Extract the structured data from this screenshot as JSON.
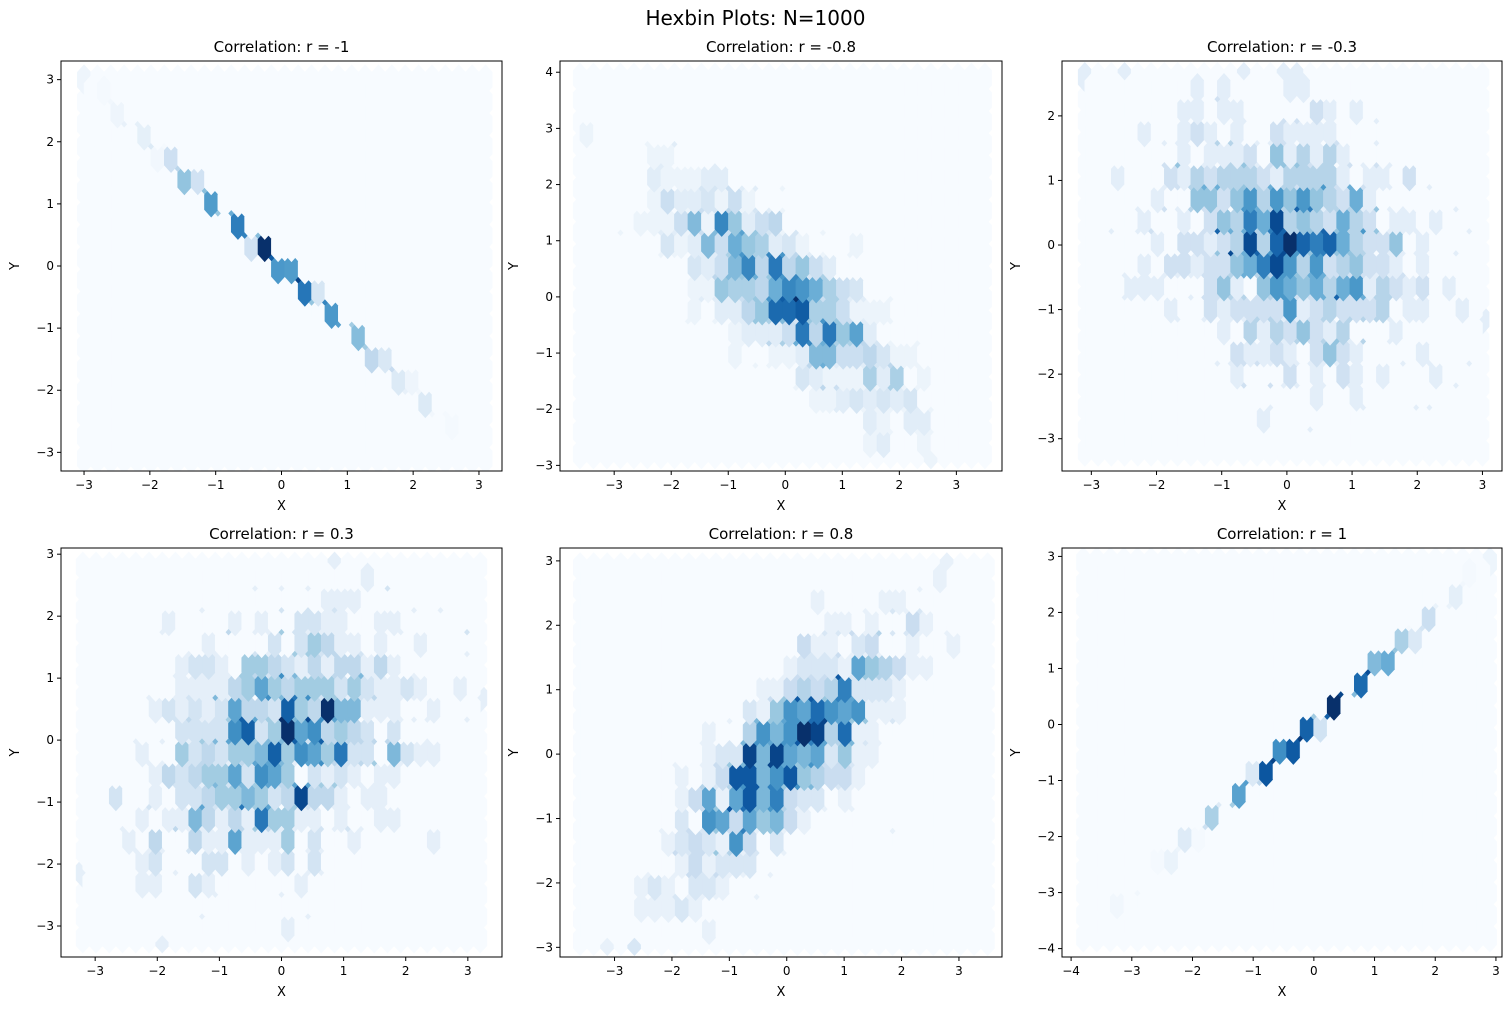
{
  "figure": {
    "title": "Hexbin Plots: N=1000",
    "colormap": [
      "#f7fbff",
      "#deebf7",
      "#c6dbef",
      "#9ecae1",
      "#6baed6",
      "#4292c6",
      "#2171b5",
      "#08519c",
      "#08306b"
    ]
  },
  "chart_data": [
    {
      "type": "hexbin",
      "title": "Correlation: r = -1",
      "xlabel": "X",
      "ylabel": "Y",
      "r": -1,
      "xlim": [
        -3.35,
        3.35
      ],
      "ylim": [
        -3.3,
        3.3
      ],
      "xticks": [
        -3,
        -2,
        -1,
        0,
        1,
        2,
        3
      ],
      "yticks": [
        -3,
        -2,
        -1,
        0,
        1,
        2,
        3
      ],
      "extent": {
        "x": [
          -3.0,
          3.1
        ],
        "y": [
          -3.1,
          3.0
        ]
      },
      "n_points": 1000
    },
    {
      "type": "hexbin",
      "title": "Correlation: r = -0.8",
      "xlabel": "X",
      "ylabel": "Y",
      "r": -0.8,
      "xlim": [
        -3.95,
        3.8
      ],
      "ylim": [
        -3.1,
        4.2
      ],
      "xticks": [
        -3,
        -2,
        -1,
        0,
        1,
        2,
        3
      ],
      "yticks": [
        -3,
        -2,
        -1,
        0,
        1,
        2,
        3,
        4
      ],
      "extent": {
        "x": [
          -3.6,
          3.5
        ],
        "y": [
          -2.8,
          3.9
        ]
      },
      "n_points": 1000
    },
    {
      "type": "hexbin",
      "title": "Correlation: r = -0.3",
      "xlabel": "X",
      "ylabel": "Y",
      "r": -0.3,
      "xlim": [
        -3.45,
        3.3
      ],
      "ylim": [
        -3.5,
        2.85
      ],
      "xticks": [
        -3,
        -2,
        -1,
        0,
        1,
        2,
        3
      ],
      "yticks": [
        -3,
        -2,
        -1,
        0,
        1,
        2
      ],
      "extent": {
        "x": [
          -3.1,
          3.0
        ],
        "y": [
          -3.2,
          2.6
        ]
      },
      "n_points": 1000
    },
    {
      "type": "hexbin",
      "title": "Correlation: r = 0.3",
      "xlabel": "X",
      "ylabel": "Y",
      "r": 0.3,
      "xlim": [
        -3.55,
        3.55
      ],
      "ylim": [
        -3.5,
        3.1
      ],
      "xticks": [
        -3,
        -2,
        -1,
        0,
        1,
        2,
        3
      ],
      "yticks": [
        -3,
        -2,
        -1,
        0,
        1,
        2,
        3
      ],
      "extent": {
        "x": [
          -3.2,
          3.2
        ],
        "y": [
          -3.2,
          2.8
        ]
      },
      "n_points": 1000
    },
    {
      "type": "hexbin",
      "title": "Correlation: r = 0.8",
      "xlabel": "X",
      "ylabel": "Y",
      "r": 0.8,
      "xlim": [
        -3.95,
        3.75
      ],
      "ylim": [
        -3.15,
        3.2
      ],
      "xticks": [
        -3,
        -2,
        -1,
        0,
        1,
        2,
        3
      ],
      "yticks": [
        -3,
        -2,
        -1,
        0,
        1,
        2,
        3
      ],
      "extent": {
        "x": [
          -3.6,
          3.5
        ],
        "y": [
          -2.9,
          2.9
        ]
      },
      "n_points": 1000
    },
    {
      "type": "hexbin",
      "title": "Correlation: r = 1",
      "xlabel": "X",
      "ylabel": "Y",
      "r": 1,
      "xlim": [
        -4.15,
        3.1
      ],
      "ylim": [
        -4.15,
        3.15
      ],
      "xticks": [
        -4,
        -3,
        -2,
        -1,
        0,
        1,
        2,
        3
      ],
      "yticks": [
        -4,
        -3,
        -2,
        -1,
        0,
        1,
        2,
        3
      ],
      "extent": {
        "x": [
          -3.8,
          2.9
        ],
        "y": [
          -3.8,
          2.9
        ]
      },
      "n_points": 1000
    }
  ]
}
